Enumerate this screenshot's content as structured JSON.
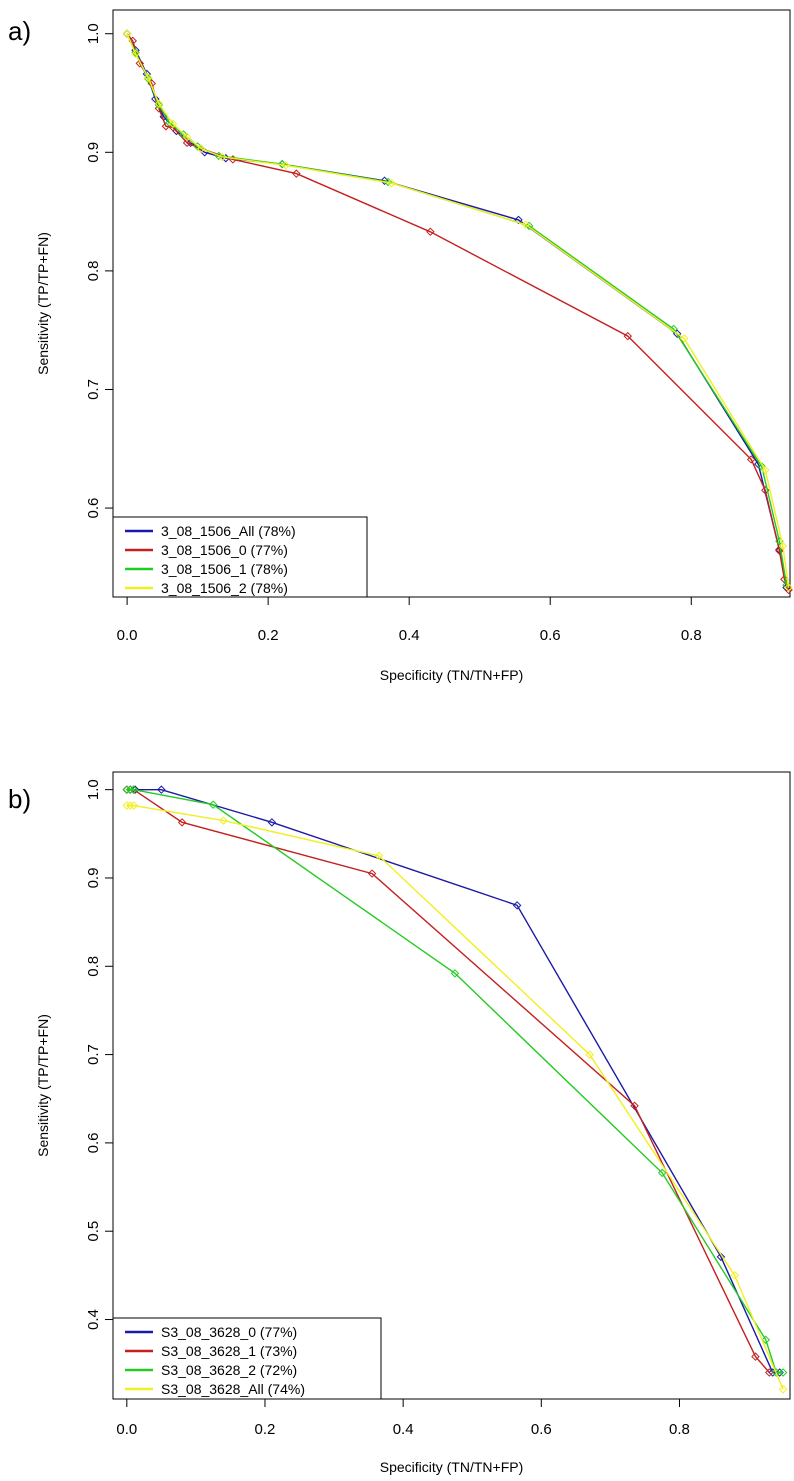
{
  "chart_data": [
    {
      "panel_label": "a)",
      "type": "line",
      "title": "",
      "xlabel": "Specificity (TN/TN+FP)",
      "ylabel": "Sensitivity (TP/TP+FN)",
      "xlim": [
        -0.02,
        0.94
      ],
      "ylim": [
        0.525,
        1.02
      ],
      "xticks": [
        "0.0",
        "0.2",
        "0.4",
        "0.6",
        "0.8"
      ],
      "xtick_values": [
        0.0,
        0.2,
        0.4,
        0.6,
        0.8
      ],
      "yticks": [
        "0.6",
        "0.7",
        "0.8",
        "0.9",
        "1.0"
      ],
      "ytick_values": [
        0.6,
        0.7,
        0.8,
        0.9,
        1.0
      ],
      "grid": false,
      "legend_position": "bottom-left",
      "series": [
        {
          "name": "3_08_1506_All (78%)",
          "color": "#1a1aa6",
          "x": [
            0.0,
            0.012,
            0.028,
            0.04,
            0.052,
            0.07,
            0.09,
            0.11,
            0.14,
            0.22,
            0.365,
            0.555,
            0.78,
            0.895,
            0.925,
            0.935
          ],
          "y": [
            1.0,
            0.986,
            0.966,
            0.945,
            0.93,
            0.918,
            0.908,
            0.9,
            0.895,
            0.89,
            0.876,
            0.843,
            0.747,
            0.637,
            0.565,
            0.533
          ]
        },
        {
          "name": "3_08_1506_0 (77%)",
          "color": "#c42020",
          "x": [
            0.0,
            0.008,
            0.018,
            0.035,
            0.045,
            0.055,
            0.065,
            0.085,
            0.105,
            0.15,
            0.24,
            0.43,
            0.71,
            0.885,
            0.905,
            0.925,
            0.932,
            0.938
          ],
          "y": [
            1.0,
            0.994,
            0.975,
            0.958,
            0.937,
            0.922,
            0.921,
            0.908,
            0.903,
            0.894,
            0.882,
            0.833,
            0.745,
            0.641,
            0.615,
            0.564,
            0.54,
            0.531
          ]
        },
        {
          "name": "3_08_1506_1 (78%)",
          "color": "#22cc22",
          "x": [
            0.0,
            0.012,
            0.03,
            0.045,
            0.06,
            0.08,
            0.1,
            0.13,
            0.22,
            0.37,
            0.57,
            0.775,
            0.9,
            0.925,
            0.935
          ],
          "y": [
            1.0,
            0.984,
            0.962,
            0.94,
            0.925,
            0.915,
            0.905,
            0.897,
            0.89,
            0.875,
            0.838,
            0.751,
            0.635,
            0.572,
            0.535
          ]
        },
        {
          "name": "3_08_1506_2 (78%)",
          "color": "#f0f020",
          "x": [
            0.0,
            0.012,
            0.03,
            0.045,
            0.065,
            0.085,
            0.105,
            0.135,
            0.225,
            0.375,
            0.565,
            0.79,
            0.905,
            0.93,
            0.938
          ],
          "y": [
            1.0,
            0.983,
            0.963,
            0.941,
            0.924,
            0.913,
            0.903,
            0.896,
            0.889,
            0.874,
            0.839,
            0.743,
            0.632,
            0.568,
            0.533
          ]
        }
      ]
    },
    {
      "panel_label": "b)",
      "type": "line",
      "title": "",
      "xlabel": "Specificity (TN/TN+FP)",
      "ylabel": "Sensitivity (TP/TP+FN)",
      "xlim": [
        -0.02,
        0.96
      ],
      "ylim": [
        0.31,
        1.02
      ],
      "xticks": [
        "0.0",
        "0.2",
        "0.4",
        "0.6",
        "0.8"
      ],
      "xtick_values": [
        0.0,
        0.2,
        0.4,
        0.6,
        0.8
      ],
      "yticks": [
        "0.4",
        "0.5",
        "0.6",
        "0.7",
        "0.8",
        "0.9",
        "1.0"
      ],
      "ytick_values": [
        0.4,
        0.5,
        0.6,
        0.7,
        0.8,
        0.9,
        1.0
      ],
      "grid": false,
      "legend_position": "bottom-left",
      "series": [
        {
          "name": "S3_08_3628_0 (77%)",
          "color": "#1a1aa6",
          "x": [
            0.0,
            0.005,
            0.012,
            0.05,
            0.21,
            0.565,
            0.86,
            0.935,
            0.945
          ],
          "y": [
            1.0,
            1.0,
            1.0,
            1.0,
            0.963,
            0.869,
            0.471,
            0.34,
            0.34
          ]
        },
        {
          "name": "S3_08_3628_1 (73%)",
          "color": "#c42020",
          "x": [
            0.0,
            0.005,
            0.01,
            0.08,
            0.355,
            0.735,
            0.91,
            0.93
          ],
          "y": [
            1.0,
            1.0,
            1.0,
            0.963,
            0.905,
            0.642,
            0.358,
            0.34
          ]
        },
        {
          "name": "S3_08_3628_2 (72%)",
          "color": "#22cc22",
          "x": [
            0.0,
            0.005,
            0.01,
            0.125,
            0.475,
            0.775,
            0.925,
            0.94,
            0.95
          ],
          "y": [
            1.0,
            1.0,
            1.0,
            0.983,
            0.792,
            0.566,
            0.377,
            0.34,
            0.34
          ]
        },
        {
          "name": "S3_08_3628_All (74%)",
          "color": "#f0f020",
          "x": [
            0.0,
            0.005,
            0.01,
            0.14,
            0.365,
            0.67,
            0.88,
            0.95
          ],
          "y": [
            0.982,
            0.982,
            0.982,
            0.965,
            0.925,
            0.7,
            0.45,
            0.321
          ]
        }
      ]
    }
  ]
}
